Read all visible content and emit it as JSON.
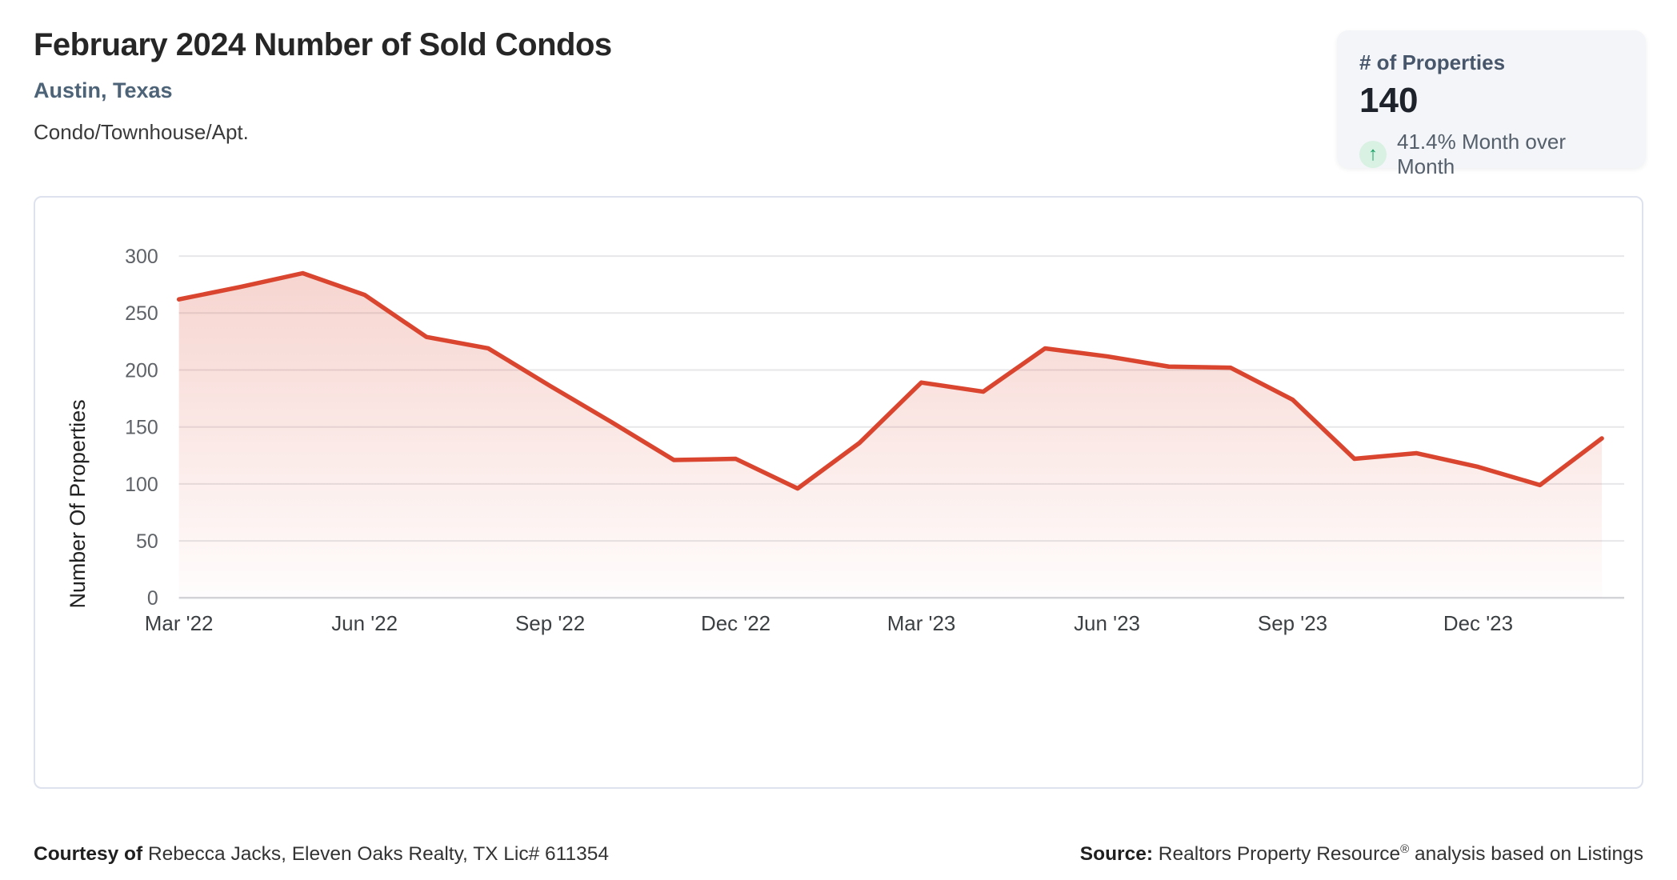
{
  "header": {
    "title": "February 2024 Number of Sold Condos",
    "subtitle": "Austin, Texas",
    "property_type": "Condo/Townhouse/Apt."
  },
  "stat_card": {
    "label": "# of Properties",
    "value": "140",
    "trend_icon": "arrow-up-icon",
    "change_text": "41.4% Month over Month",
    "trend_color": "#17a266",
    "trend_bg": "#d8f1e3"
  },
  "chart_data": {
    "type": "area",
    "title": "",
    "x": [
      "Mar '22",
      "Apr '22",
      "May '22",
      "Jun '22",
      "Jul '22",
      "Aug '22",
      "Sep '22",
      "Oct '22",
      "Nov '22",
      "Dec '22",
      "Jan '23",
      "Feb '23",
      "Mar '23",
      "Apr '23",
      "May '23",
      "Jun '23",
      "Jul '23",
      "Aug '23",
      "Sep '23",
      "Oct '23",
      "Nov '23",
      "Dec '23",
      "Jan '24",
      "Feb '24"
    ],
    "values": [
      262,
      273,
      285,
      266,
      229,
      219,
      186,
      154,
      121,
      122,
      96,
      136,
      189,
      181,
      219,
      212,
      203,
      202,
      174,
      122,
      127,
      115,
      99,
      140
    ],
    "xtick_labels": [
      "Mar '22",
      "Jun '22",
      "Sep '22",
      "Dec '22",
      "Mar '23",
      "Jun '23",
      "Sep '23",
      "Dec '23"
    ],
    "xtick_every": 3,
    "ylabel": "Number Of Properties",
    "ylim": [
      0,
      300
    ],
    "yticks": [
      0,
      50,
      100,
      150,
      200,
      250,
      300
    ],
    "grid": true,
    "legend": "none",
    "line_color": "#d9452f",
    "fill_top": "rgba(218,69,47,0.24)",
    "fill_bottom": "rgba(218,69,47,0.01)"
  },
  "footer": {
    "courtesy_bold": "Courtesy of",
    "courtesy_text": " Rebecca Jacks, Eleven Oaks Realty, TX Lic# 611354",
    "source_bold": "Source:",
    "source_text_pre": " Realtors Property Resource",
    "source_sup": "®",
    "source_text_post": " analysis based on Listings"
  }
}
